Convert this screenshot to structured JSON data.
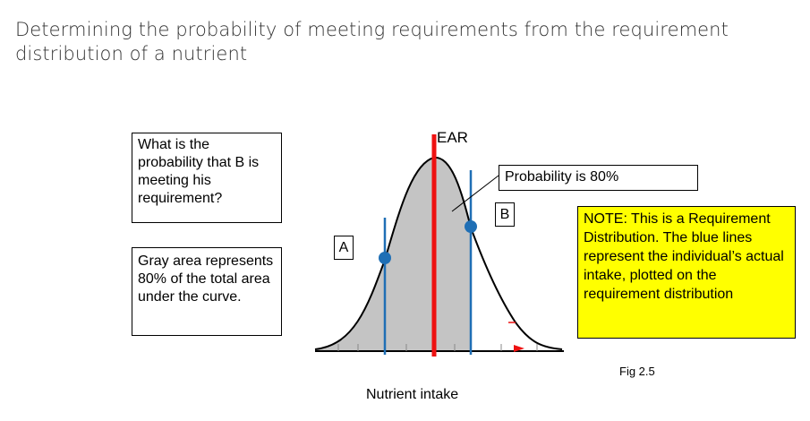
{
  "title": "Determining the probability of meeting requirements from the requirement distribution of a nutrient",
  "question_box": {
    "text": "What is the probability that B is meeting his requirement?"
  },
  "gray_area_box": {
    "text": "Gray area represents 80% of the total area under the curve."
  },
  "probability_callout": "Probability is  80%",
  "note_box": {
    "text": "NOTE: This is a Requirement Distribution. The blue lines represent the individual’s actual intake, plotted on the requirement distribution"
  },
  "ear_label": "EAR",
  "label_a": "A",
  "label_b": "B",
  "x_axis_label": "Nutrient intake",
  "figure_label": "Fig 2.5",
  "colors": {
    "curve_fill": "#c4c4c4",
    "ear_line": "#ee1111",
    "intake_line": "#1f6fb5",
    "intake_marker": "#1f6fb5",
    "note_background": "#ffff00",
    "arrow": "#ee1111"
  }
}
